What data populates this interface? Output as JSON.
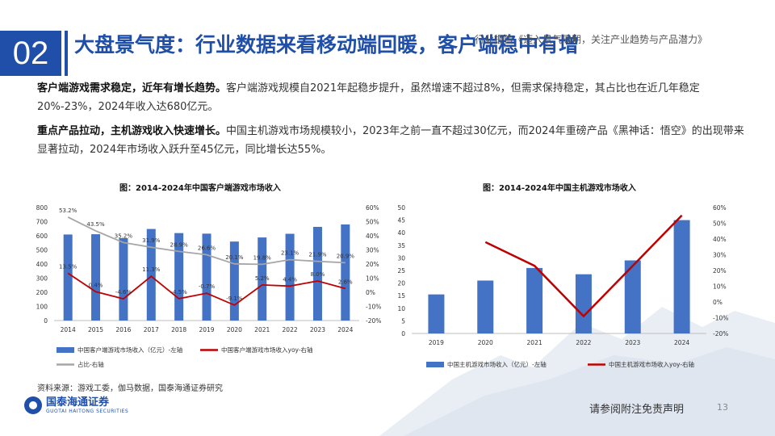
{
  "header": {
    "section_number": "02",
    "title": "大盘景气度：行业数据来看移动端回暖，客户端稳中有增",
    "report_title": "行业报告《迈入景气周期，关注产业趋势与产品潜力》"
  },
  "paragraphs": [
    {
      "bold": "客户端游戏需求稳定，近年有增长趋势。",
      "text": "客户端游戏规模自2021年起稳步提升，虽然增速不超过8%，但需求保持稳定，其占比也在近几年稳定20%-23%，2024年收入达680亿元。"
    },
    {
      "bold": "重点产品拉动，主机游戏收入快速增长。",
      "text": "中国主机游戏市场规模较小，2023年之前一直不超过30亿元，而2024年重磅产品《黑神话：悟空》的出现带来显著拉动，2024年市场收入跃升至45亿元，同比增长达55%。"
    }
  ],
  "chart_data": [
    {
      "type": "bar",
      "title": "图：2014-2024年中国客户端游戏市场收入",
      "categories": [
        "2014",
        "2015",
        "2016",
        "2017",
        "2018",
        "2019",
        "2020",
        "2021",
        "2022",
        "2023",
        "2024"
      ],
      "left_axis": {
        "ylim": [
          0,
          800
        ],
        "ticks": [
          "0",
          "100",
          "200",
          "300",
          "400",
          "500",
          "600",
          "700",
          "800"
        ]
      },
      "right_axis": {
        "ylim": [
          -20,
          60
        ],
        "ticks": [
          "-20%",
          "-10%",
          "0%",
          "10%",
          "20%",
          "30%",
          "40%",
          "50%",
          "60%"
        ]
      },
      "series": [
        {
          "name": "中国客户端游戏市场收入（亿元）-左轴",
          "kind": "bar",
          "axis": "left",
          "color": "#4472c4",
          "values": [
            609,
            611,
            583,
            648,
            619,
            615,
            559,
            588,
            614,
            663,
            680
          ]
        },
        {
          "name": "中国客户端游戏市场收入yoy-右轴",
          "kind": "line",
          "axis": "right",
          "color": "#c00000",
          "values": [
            13.5,
            0.4,
            -4.6,
            11.3,
            -4.5,
            -0.7,
            -9.1,
            5.2,
            4.4,
            8.0,
            2.6
          ],
          "labels": [
            "13.5%",
            "0.4%",
            "-4.6%",
            "11.3%",
            "-4.5%",
            "-0.7%",
            "-9.1%",
            "5.2%",
            "4.4%",
            "8.0%",
            "2.6%"
          ]
        },
        {
          "name": "占比-右轴",
          "kind": "line",
          "axis": "right",
          "color": "#a6a6a6",
          "values": [
            53.2,
            43.5,
            35.2,
            31.9,
            28.9,
            26.6,
            20.1,
            19.8,
            23.1,
            21.9,
            20.9
          ],
          "labels": [
            "53.2%",
            "43.5%",
            "35.2%",
            "31.9%",
            "28.9%",
            "26.6%",
            "20.1%",
            "19.8%",
            "23.1%",
            "21.9%",
            "20.9%"
          ]
        }
      ]
    },
    {
      "type": "bar",
      "title": "图：2014-2024年中国主机游戏市场收入",
      "categories": [
        "2019",
        "2020",
        "2021",
        "2022",
        "2023",
        "2024"
      ],
      "left_axis": {
        "ylim": [
          0,
          50
        ],
        "ticks": [
          "0",
          "5",
          "10",
          "15",
          "20",
          "25",
          "30",
          "35",
          "40",
          "45",
          "50"
        ]
      },
      "right_axis": {
        "ylim": [
          -20,
          60
        ],
        "ticks": [
          "-20%",
          "-10%",
          "0%",
          "10%",
          "20%",
          "30%",
          "40%",
          "50%",
          "60%"
        ]
      },
      "series": [
        {
          "name": "中国主机游戏市场收入（亿元）-左轴",
          "kind": "bar",
          "axis": "left",
          "color": "#4472c4",
          "values": [
            15.5,
            21,
            26,
            23.5,
            29,
            45
          ]
        },
        {
          "name": "中国主机游戏市场收入yoy-右轴",
          "kind": "line",
          "axis": "right",
          "color": "#c00000",
          "values": [
            null,
            38,
            23,
            -9,
            23,
            55
          ]
        }
      ]
    }
  ],
  "footer": {
    "source": "资料来源：游戏工委，伽马数据，国泰海通证券研究",
    "logo_cn": "国泰海通证券",
    "logo_en": "GUOTAI HAITONG SECURITIES",
    "disclaimer": "请参阅附注免责声明",
    "page": "13"
  }
}
